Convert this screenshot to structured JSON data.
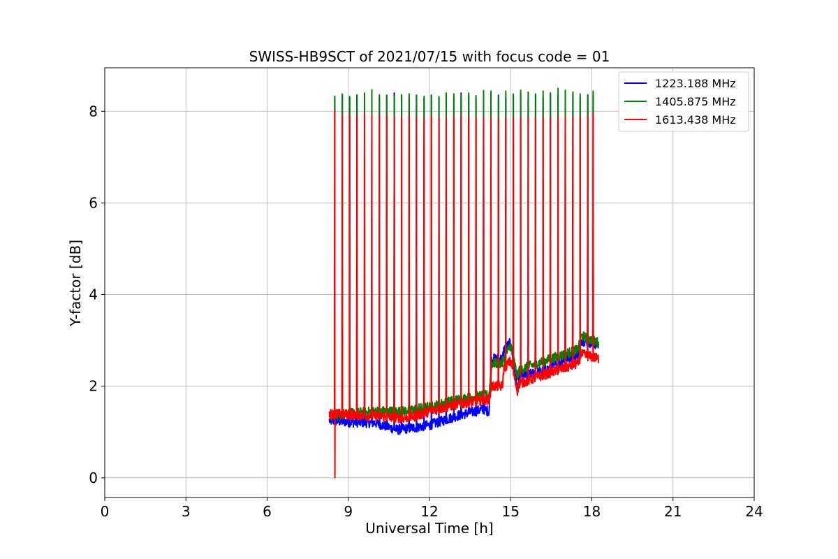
{
  "chart_data": {
    "type": "line",
    "title": "SWISS-HB9SCT of 2021/07/15 with focus code = 01",
    "xlabel": "Universal Time [h]",
    "ylabel": "Y-factor [dB]",
    "xlim": [
      0,
      24
    ],
    "ylim": [
      -0.43,
      8.95
    ],
    "xticks": [
      0,
      3,
      6,
      9,
      12,
      15,
      18,
      21,
      24
    ],
    "yticks": [
      0,
      2,
      4,
      6,
      8
    ],
    "grid": true,
    "legend_position": "top-right",
    "data_start_hour": 8.3,
    "data_end_hour": 18.25,
    "calibration_spike_hours": [
      8.5,
      8.78,
      9.05,
      9.32,
      9.6,
      9.87,
      10.15,
      10.42,
      10.7,
      10.97,
      11.25,
      11.52,
      11.8,
      12.07,
      12.35,
      12.62,
      12.9,
      13.17,
      13.45,
      13.72,
      14.0,
      14.27,
      14.55,
      14.82,
      15.1,
      15.37,
      15.65,
      15.92,
      16.2,
      16.47,
      16.75,
      17.02,
      17.3,
      17.57,
      17.85,
      18.05
    ],
    "dropout": {
      "x": 8.5,
      "y": 0.0
    },
    "series": [
      {
        "name": "1223.188 MHz",
        "color": "#0000ff",
        "baseline_x": [
          8.3,
          9.0,
          10.0,
          10.8,
          11.5,
          12.0,
          13.0,
          14.0,
          14.2,
          14.3,
          14.7,
          14.75,
          15.0,
          15.25,
          15.3,
          16.0,
          16.5,
          17.0,
          17.5,
          17.6,
          18.25
        ],
        "baseline_y": [
          1.25,
          1.22,
          1.2,
          1.05,
          1.1,
          1.15,
          1.35,
          1.5,
          1.45,
          2.6,
          2.6,
          2.8,
          2.95,
          1.9,
          2.2,
          2.3,
          2.4,
          2.6,
          2.7,
          3.0,
          2.9
        ],
        "spike_peaks": [
          8.3,
          8.35,
          8.3,
          8.35,
          8.3,
          8.35,
          8.3,
          8.35,
          8.4,
          8.35,
          8.3,
          8.35,
          8.3,
          8.35,
          8.3,
          8.35,
          8.3,
          8.4,
          8.35,
          8.3,
          8.35,
          8.3,
          8.35,
          8.3,
          8.35,
          8.4,
          8.3,
          8.35,
          8.3,
          8.4,
          8.35,
          8.3,
          8.35,
          8.3,
          8.35,
          8.35
        ]
      },
      {
        "name": "1405.875 MHz",
        "color": "#008000",
        "baseline_x": [
          8.3,
          9.0,
          10.0,
          11.0,
          11.5,
          12.0,
          13.0,
          14.0,
          14.2,
          14.3,
          14.7,
          14.75,
          15.0,
          15.25,
          15.3,
          16.0,
          16.5,
          17.0,
          17.5,
          17.6,
          18.25
        ],
        "baseline_y": [
          1.35,
          1.4,
          1.45,
          1.45,
          1.5,
          1.55,
          1.7,
          1.8,
          1.8,
          2.5,
          2.5,
          2.6,
          2.9,
          2.2,
          2.35,
          2.5,
          2.6,
          2.7,
          2.8,
          3.1,
          2.95
        ],
        "spike_peaks": [
          8.33,
          8.38,
          8.32,
          8.36,
          8.4,
          8.47,
          8.36,
          8.35,
          8.33,
          8.36,
          8.38,
          8.34,
          8.33,
          8.35,
          8.32,
          8.4,
          8.38,
          8.36,
          8.4,
          8.34,
          8.45,
          8.44,
          8.33,
          8.44,
          8.38,
          8.46,
          8.42,
          8.38,
          8.44,
          8.4,
          8.5,
          8.46,
          8.42,
          8.38,
          8.36,
          8.44
        ]
      },
      {
        "name": "1613.438 MHz",
        "color": "#ff0000",
        "baseline_x": [
          8.3,
          9.0,
          10.0,
          11.0,
          11.5,
          12.0,
          13.0,
          14.0,
          14.2,
          14.3,
          14.7,
          14.75,
          15.0,
          15.25,
          15.3,
          16.0,
          16.5,
          17.0,
          17.5,
          17.6,
          18.25
        ],
        "baseline_y": [
          1.4,
          1.38,
          1.35,
          1.3,
          1.35,
          1.45,
          1.6,
          1.7,
          1.7,
          2.0,
          2.0,
          2.4,
          2.55,
          1.9,
          2.05,
          2.2,
          2.3,
          2.4,
          2.5,
          2.7,
          2.6
        ],
        "spike_peaks": [
          8.0,
          7.92,
          7.92,
          7.9,
          7.95,
          7.92,
          7.9,
          7.92,
          7.9,
          7.88,
          7.9,
          7.88,
          7.86,
          7.9,
          7.86,
          7.86,
          7.88,
          7.9,
          7.88,
          7.86,
          7.86,
          7.88,
          7.84,
          7.86,
          7.86,
          7.88,
          7.86,
          7.88,
          7.88,
          7.86,
          7.88,
          7.88,
          7.88,
          7.88,
          7.9,
          7.95
        ]
      }
    ]
  }
}
